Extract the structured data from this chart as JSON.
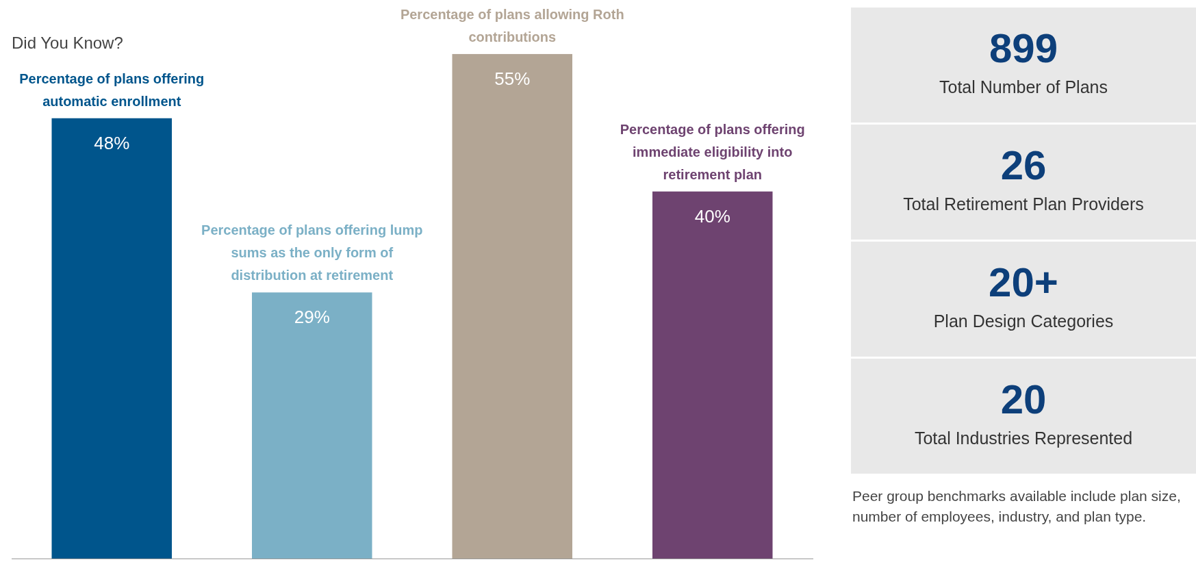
{
  "chart_data": [
    {
      "type": "bar",
      "title": "Did You Know?",
      "categories": [
        "Percentage of plans offering automatic enrollment",
        "Percentage of plans offering lump sums as the only form of distribution at retirement",
        "Percentage of plans allowing Roth contributions",
        "Percentage of plans offering immediate eligibility into retirement plan"
      ],
      "values": [
        48,
        29,
        55,
        40
      ],
      "colors": [
        "#00558c",
        "#7bb0c6",
        "#b3a595",
        "#6e4370"
      ],
      "value_labels": [
        "48%",
        "29%",
        "55%",
        "40%"
      ]
    },
    {
      "type": "other",
      "categories": [
        "Total Number of Plans",
        "Total Retirement Plan Providers",
        "Plan Design Categories",
        "Total Industries Represented"
      ],
      "value_labels": [
        "899",
        "26",
        "20+",
        "20"
      ],
      "annotations": [
        "Peer group benchmarks available include plan size, number of employees, industry, and plan type."
      ]
    }
  ]
}
